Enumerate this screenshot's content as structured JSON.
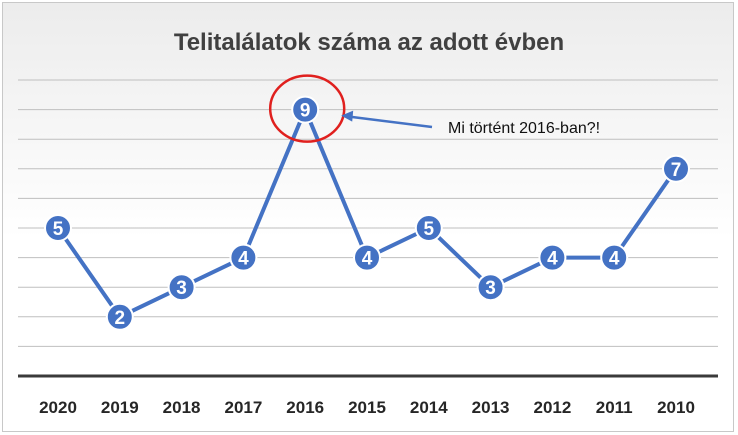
{
  "chart_data": {
    "type": "line",
    "title": "Telitalálatok száma az adott évben",
    "categories": [
      "2020",
      "2019",
      "2018",
      "2017",
      "2016",
      "2015",
      "2014",
      "2013",
      "2012",
      "2011",
      "2010"
    ],
    "series": [
      {
        "values": [
          5,
          2,
          3,
          4,
          9,
          4,
          5,
          3,
          4,
          4,
          7
        ]
      }
    ],
    "ylim": [
      0,
      10
    ],
    "grid": true,
    "annotations": [
      {
        "text": "Mi történt 2016-ban?!",
        "target_category": "2016"
      }
    ],
    "colors": {
      "line": "#4472c4",
      "marker": "#4472c4",
      "highlight_circle": "#e0201e",
      "arrow": "#4472c4"
    }
  }
}
